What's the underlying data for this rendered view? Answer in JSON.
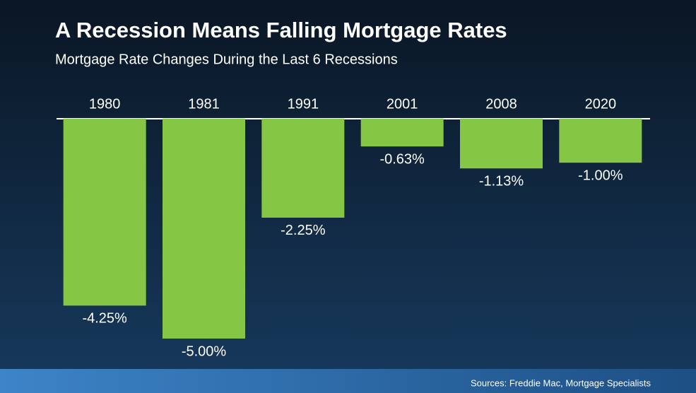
{
  "chart_data": {
    "type": "bar",
    "title": "A Recession Means Falling Mortgage Rates",
    "subtitle": "Mortgage Rate Changes During the Last 6 Recessions",
    "categories": [
      "1980",
      "1981",
      "1991",
      "2001",
      "2008",
      "2020"
    ],
    "values": [
      -4.25,
      -5.0,
      -2.25,
      -0.63,
      -1.13,
      -1.0
    ],
    "value_labels": [
      "-4.25%",
      "-5.00%",
      "-2.25%",
      "-0.63%",
      "-1.13%",
      "-1.00%"
    ],
    "color": "#85c644",
    "source": "Sources: Freddie Mac, Mortgage Specialists"
  }
}
